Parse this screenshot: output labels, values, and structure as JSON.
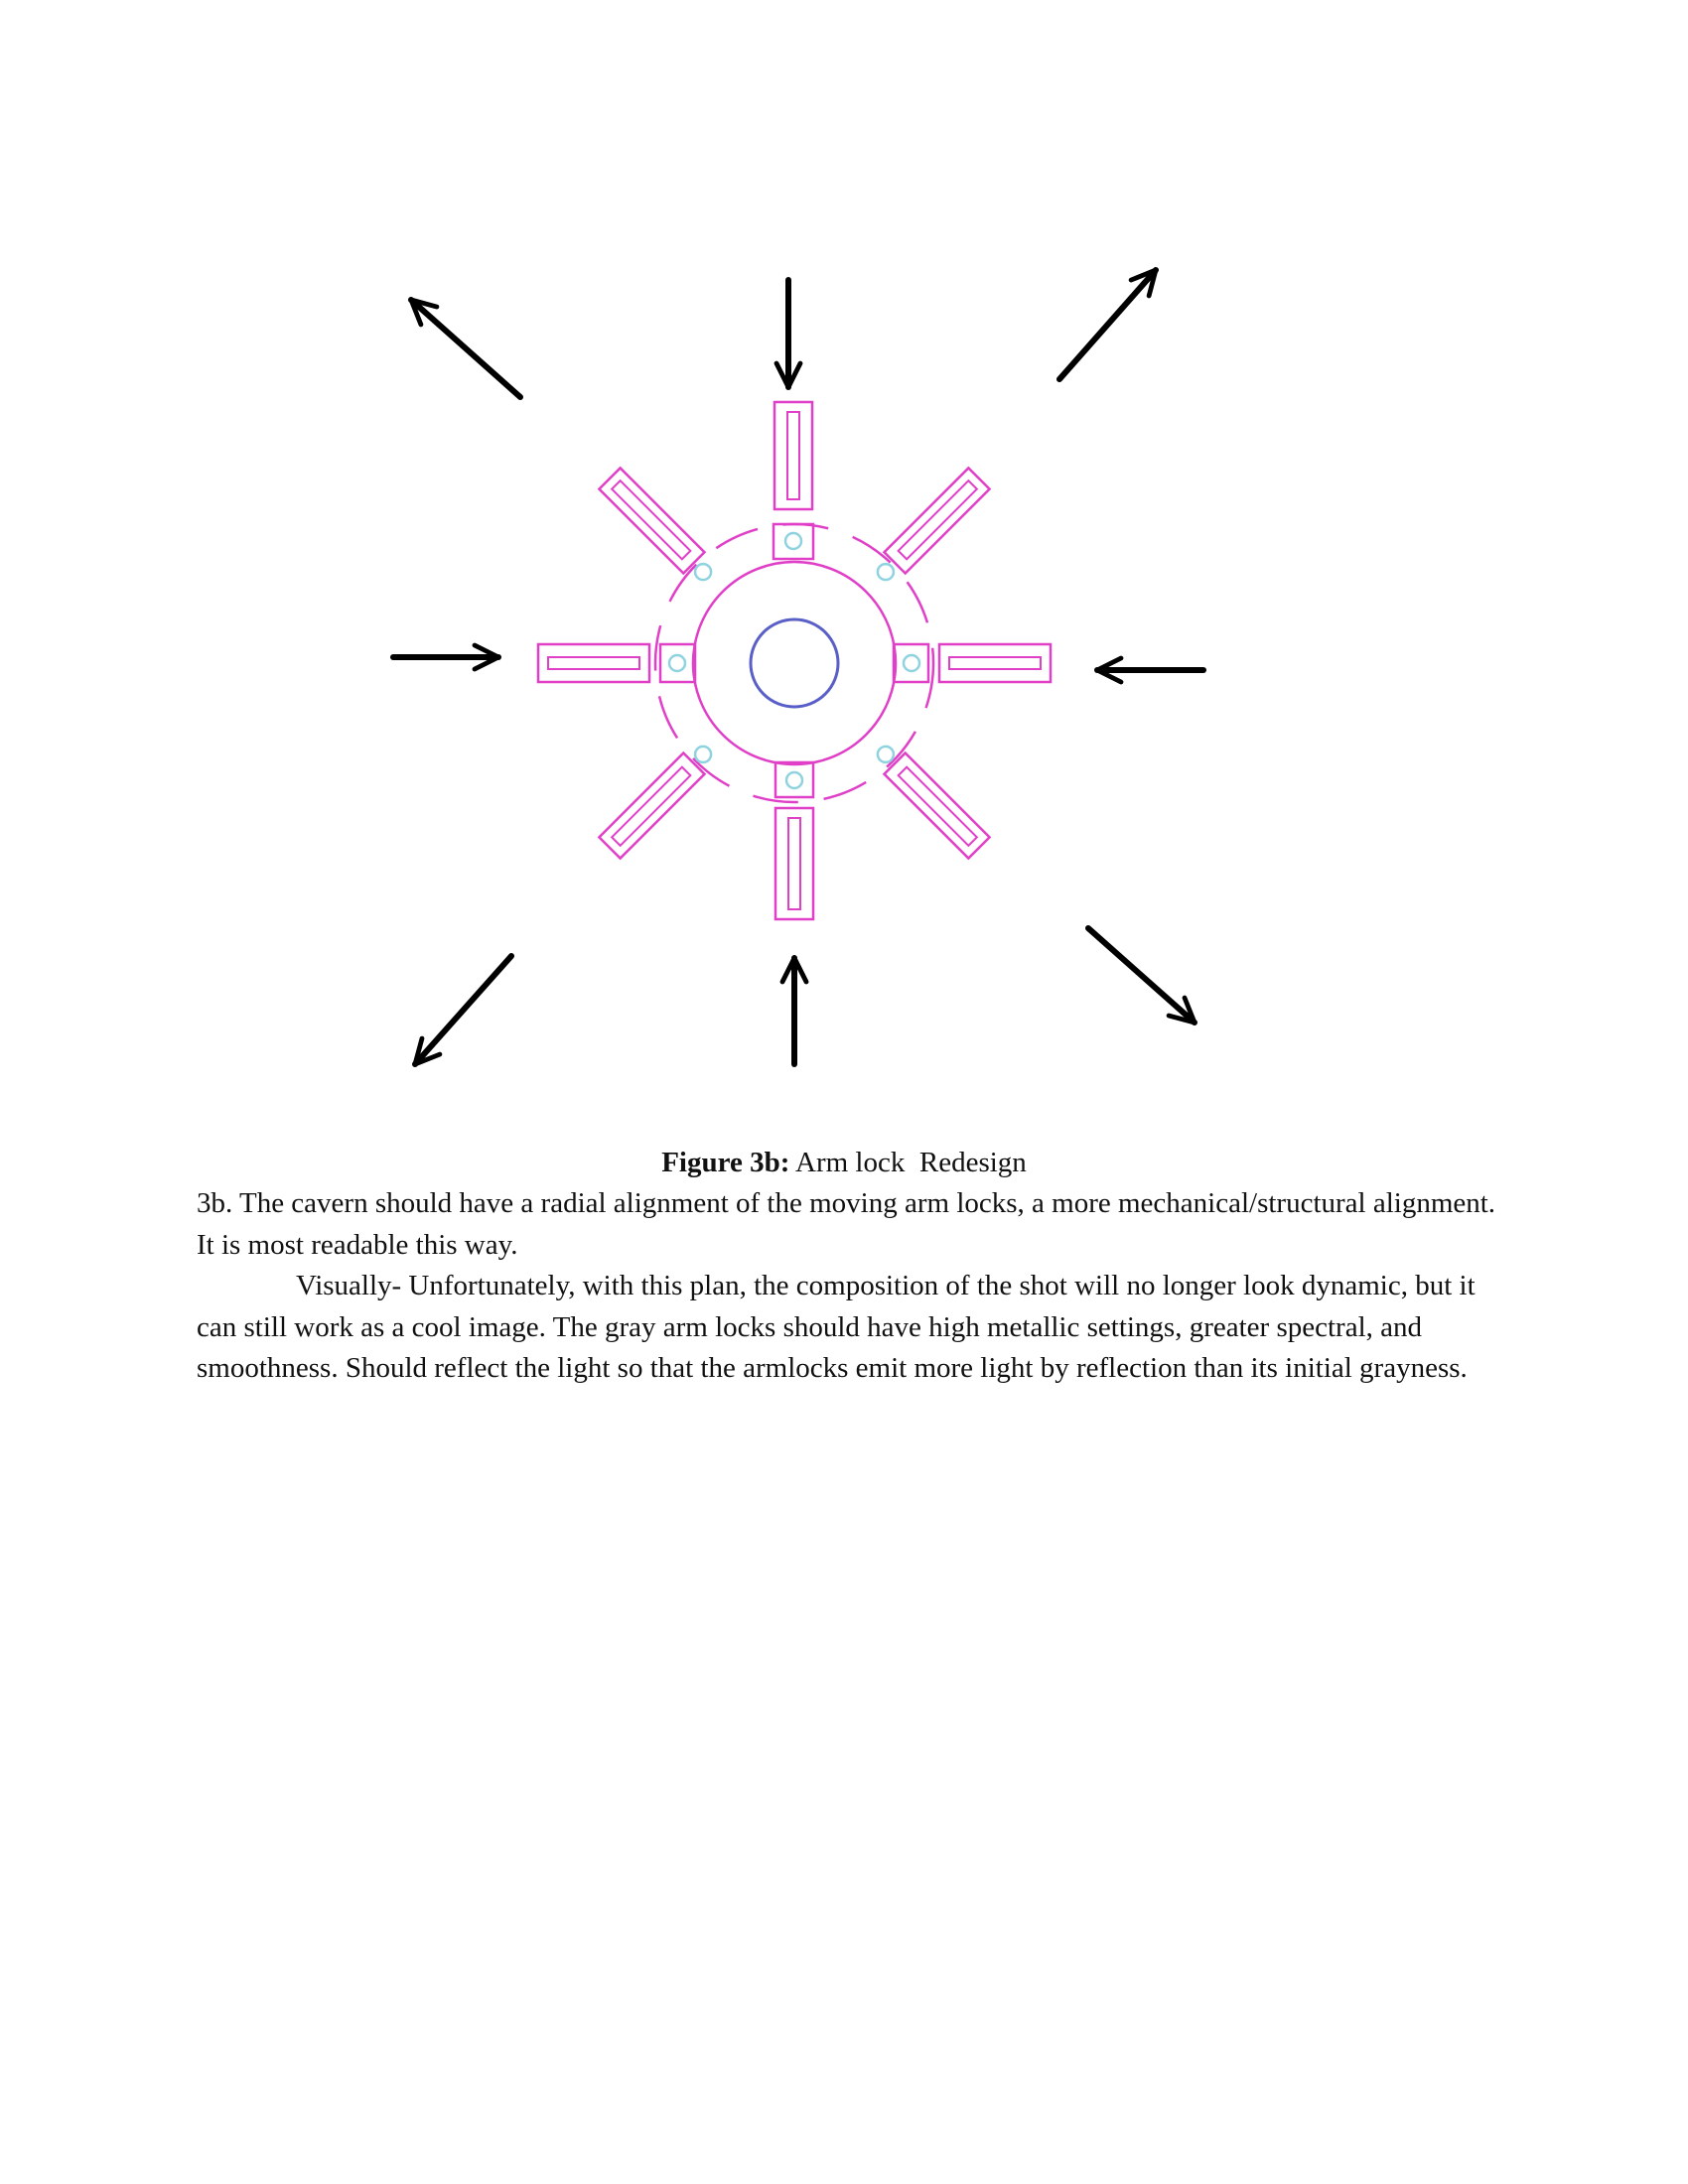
{
  "figure": {
    "caption_label": "Figure 3b:",
    "caption_text": "Arm lock  Redesign",
    "colors": {
      "arm_lock": "#e040c8",
      "ring": "#e040c8",
      "core": "#5a5fc8",
      "pin": "#8fd3e0",
      "arrow": "#000000"
    },
    "arm_lock_count": 8,
    "arrow_icons": [
      "arrow-up-left-icon",
      "arrow-down-icon",
      "arrow-up-right-icon",
      "arrow-right-icon",
      "arrow-left-icon",
      "arrow-down-left-icon",
      "arrow-up-icon",
      "arrow-down-right-icon"
    ]
  },
  "text": {
    "paragraph_1": "3b. The cavern should have a radial alignment of the moving arm locks, a more mechanical/structural alignment. It is most readable this way.",
    "paragraph_2": "Visually- Unfortunately, with this plan, the composition of the shot will no longer look dynamic, but it can still work as a cool image. The gray arm locks should have high metallic settings, greater spectral, and smoothness. Should reflect the light so that the armlocks emit more light by reflection than its initial grayness."
  }
}
